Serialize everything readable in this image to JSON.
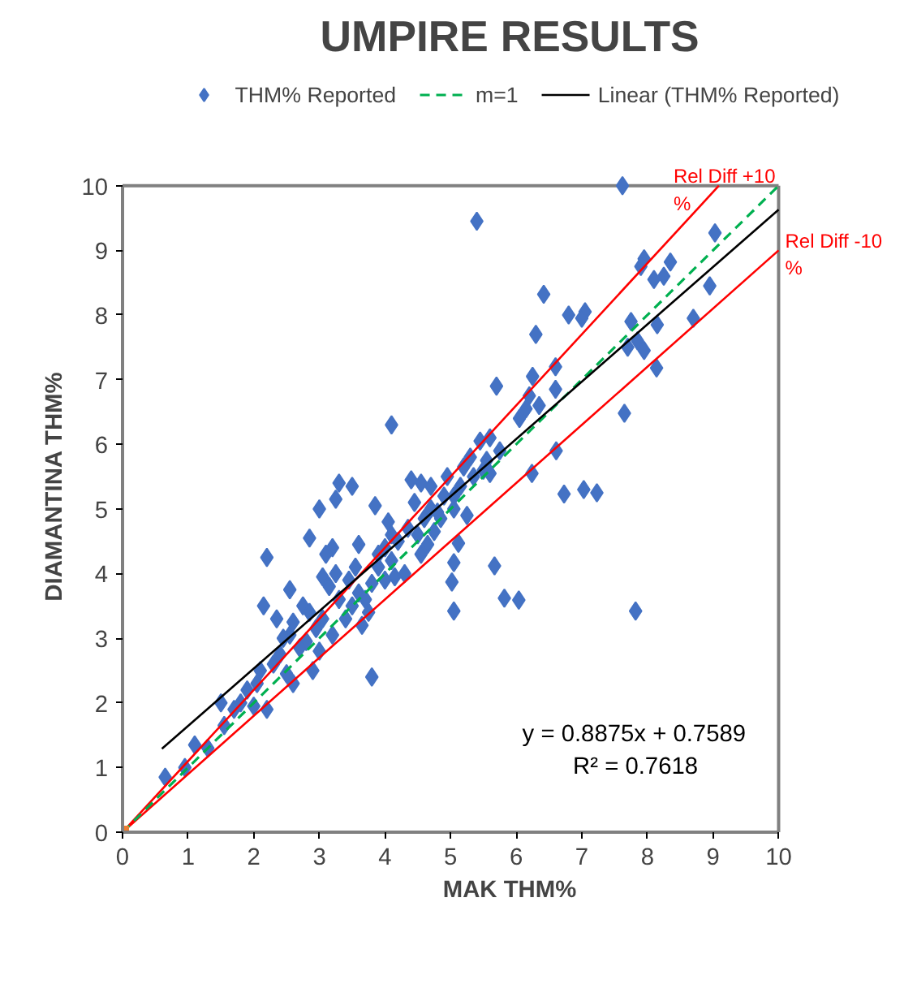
{
  "chart_data": {
    "type": "scatter",
    "title": "UMPIRE RESULTS",
    "xlabel": "MAK THM%",
    "ylabel": "DIAMANTINA THM%",
    "xlim": [
      0,
      10
    ],
    "ylim": [
      0,
      10
    ],
    "xticks": [
      0,
      1,
      2,
      3,
      4,
      5,
      6,
      7,
      8,
      9,
      10
    ],
    "yticks": [
      0,
      1,
      2,
      3,
      4,
      5,
      6,
      7,
      8,
      9,
      10
    ],
    "grid": false,
    "legend": "top",
    "series": [
      {
        "name": "THM% Reported",
        "marker": "diamond",
        "color": "#4472c4",
        "x": [
          7.62,
          5.4,
          9.03,
          7.95,
          7.9,
          8.35,
          8.1,
          8.25,
          6.42,
          7.05,
          7.0,
          6.8,
          8.95,
          8.7,
          7.75,
          8.15,
          6.3,
          6.6,
          6.25,
          7.85,
          7.7,
          7.95,
          8.14,
          7.65,
          5.7,
          6.2,
          6.35,
          6.15,
          6.05,
          6.6,
          6.61,
          6.24,
          5.6,
          5.75,
          5.55,
          6.73,
          7.03,
          7.23,
          5.5,
          5.12,
          5.05,
          5.67,
          5.02,
          5.05,
          5.82,
          6.04,
          7.82,
          0.65,
          0.95,
          1.1,
          1.3,
          1.5,
          1.55,
          1.7,
          1.8,
          1.9,
          2.05,
          2.0,
          2.2,
          2.1,
          2.3,
          2.4,
          2.5,
          2.6,
          2.55,
          2.7,
          2.8,
          2.9,
          3.0,
          2.6,
          2.75,
          2.85,
          2.95,
          3.05,
          3.2,
          3.3,
          3.4,
          3.5,
          3.15,
          3.05,
          3.25,
          3.45,
          3.6,
          3.7,
          3.8,
          3.9,
          3.75,
          3.65,
          3.8,
          2.15,
          2.2,
          2.85,
          3.2,
          3.6,
          3.9,
          4.0,
          4.1,
          4.2,
          4.3,
          4.15,
          4.35,
          4.5,
          4.6,
          4.7,
          4.8,
          4.9,
          4.55,
          4.65,
          4.45,
          4.7,
          4.95,
          5.05,
          5.15,
          5.2,
          5.35,
          5.25,
          4.85,
          4.4,
          4.55,
          4.1,
          3.3,
          3.5,
          3.25,
          3.0,
          3.85,
          4.05,
          4.1,
          3.1,
          2.55,
          2.35,
          2.45,
          3.55,
          4.0,
          4.75,
          5.05,
          5.6,
          5.45,
          5.3
        ],
        "values": [
          10.0,
          9.45,
          9.27,
          8.87,
          8.75,
          8.82,
          8.55,
          8.6,
          8.32,
          8.05,
          7.95,
          8.0,
          8.45,
          7.95,
          7.9,
          7.85,
          7.7,
          7.2,
          7.05,
          7.6,
          7.5,
          7.45,
          7.18,
          6.48,
          6.9,
          6.75,
          6.6,
          6.55,
          6.4,
          6.85,
          5.9,
          5.55,
          6.1,
          5.9,
          5.75,
          5.23,
          5.3,
          5.25,
          5.6,
          4.47,
          4.17,
          4.12,
          3.87,
          3.42,
          3.62,
          3.59,
          3.42,
          0.85,
          1.0,
          1.35,
          1.3,
          2.0,
          1.65,
          1.9,
          2.0,
          2.2,
          2.3,
          1.95,
          1.9,
          2.5,
          2.6,
          2.75,
          2.45,
          2.3,
          3.05,
          2.85,
          2.95,
          2.5,
          2.8,
          3.25,
          3.5,
          3.4,
          3.15,
          3.3,
          3.05,
          3.6,
          3.3,
          3.5,
          3.8,
          3.95,
          4.0,
          3.9,
          3.7,
          3.6,
          3.85,
          4.1,
          3.4,
          3.2,
          2.4,
          3.5,
          4.25,
          4.55,
          4.4,
          4.45,
          4.3,
          4.4,
          4.2,
          4.5,
          4.0,
          3.95,
          4.7,
          4.6,
          4.85,
          5.0,
          4.95,
          5.2,
          4.3,
          4.45,
          5.1,
          5.35,
          5.5,
          5.2,
          5.35,
          5.65,
          5.5,
          4.9,
          4.85,
          5.45,
          5.4,
          6.3,
          5.4,
          5.35,
          5.15,
          5.0,
          5.05,
          4.8,
          4.6,
          4.3,
          3.75,
          3.3,
          3.0,
          4.1,
          3.9,
          4.65,
          5.0,
          5.55,
          6.05,
          5.8
        ]
      },
      {
        "type": "line",
        "color": "#ff0000",
        "x": [
          0,
          9.09
        ],
        "values": [
          0,
          10
        ]
      },
      {
        "type": "line",
        "color": "#ff0000",
        "x": [
          0,
          10
        ],
        "values": [
          0,
          9
        ]
      },
      {
        "name": "m=1",
        "type": "line",
        "color": "#00b050",
        "line_style": "dashed",
        "x": [
          0,
          10
        ],
        "values": [
          0,
          10
        ]
      },
      {
        "name": "Linear (THM% Reported)",
        "type": "line",
        "color": "#000000",
        "x": [
          0.6,
          10
        ],
        "values": [
          1.29,
          9.63
        ]
      },
      {
        "type": "scatter",
        "marker": "square",
        "color": "#ed7d31",
        "x": [
          0
        ],
        "values": [
          0
        ]
      }
    ],
    "annotations": [
      {
        "text": "Rel Diff +10 %",
        "x": 9.09,
        "y": 10
      },
      {
        "text": "Rel Diff -10 %",
        "x": 10,
        "y": 9
      },
      "y = 0.8875x + 0.7589",
      "R² = 0.7618"
    ]
  }
}
